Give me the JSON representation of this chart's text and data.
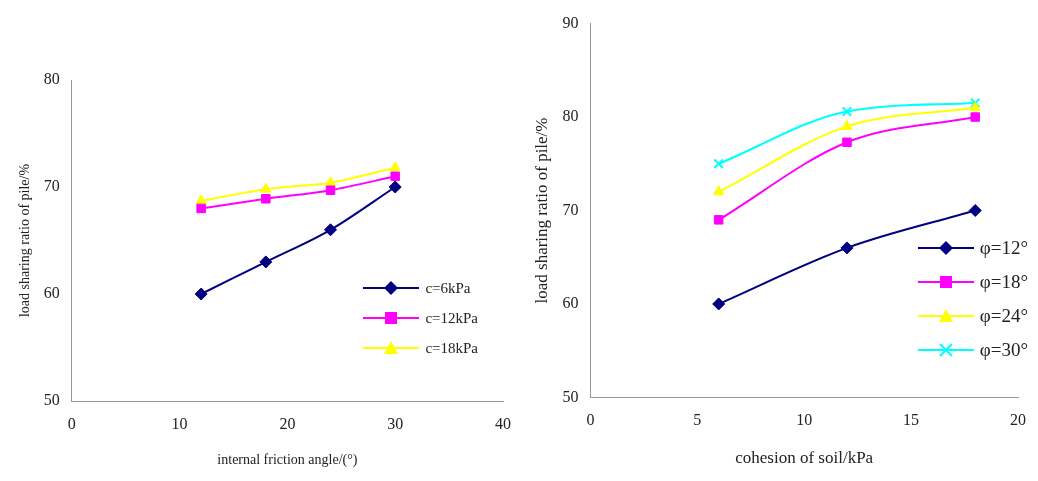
{
  "chart_data": [
    {
      "type": "line",
      "xlabel": "internal friction angle/(°)",
      "ylabel": "load sharing ratio of pile/%",
      "xlim": [
        0,
        40
      ],
      "xticks": [
        0,
        10,
        20,
        30,
        40
      ],
      "ylim": [
        50,
        80
      ],
      "yticks": [
        50,
        60,
        70,
        80
      ],
      "grid": false,
      "legend": "bottom right",
      "x": [
        12,
        18,
        24,
        30
      ],
      "series": [
        {
          "name": "c=6kPa",
          "color": "#000080",
          "marker": "diamond",
          "values": [
            60,
            63,
            66,
            70
          ]
        },
        {
          "name": "c=12kPa",
          "color": "#ff00ff",
          "marker": "square",
          "values": [
            68,
            68.9,
            69.7,
            71
          ]
        },
        {
          "name": "c=18kPa",
          "color": "#ffff00",
          "marker": "triangle",
          "values": [
            68.7,
            69.8,
            70.4,
            71.8
          ]
        }
      ]
    },
    {
      "type": "line",
      "xlabel": "cohesion of soil/kPa",
      "ylabel": "load sharing ratio of pile/%",
      "xlim": [
        0,
        20
      ],
      "xticks": [
        0,
        5,
        10,
        15,
        20
      ],
      "ylim": [
        50,
        90
      ],
      "yticks": [
        50,
        60,
        70,
        80,
        90
      ],
      "grid": false,
      "legend": "bottom right",
      "x": [
        6,
        12,
        18
      ],
      "series": [
        {
          "name": "φ=12°",
          "color": "#000080",
          "marker": "diamond",
          "values": [
            60,
            66,
            70
          ]
        },
        {
          "name": "φ=18°",
          "color": "#ff00ff",
          "marker": "square",
          "values": [
            69,
            77.3,
            80
          ]
        },
        {
          "name": "φ=24°",
          "color": "#ffff00",
          "marker": "triangle",
          "values": [
            72,
            79,
            81
          ]
        },
        {
          "name": "φ=30°",
          "color": "#00ffff",
          "marker": "cross",
          "values": [
            75,
            80.6,
            81.5
          ]
        }
      ]
    }
  ]
}
